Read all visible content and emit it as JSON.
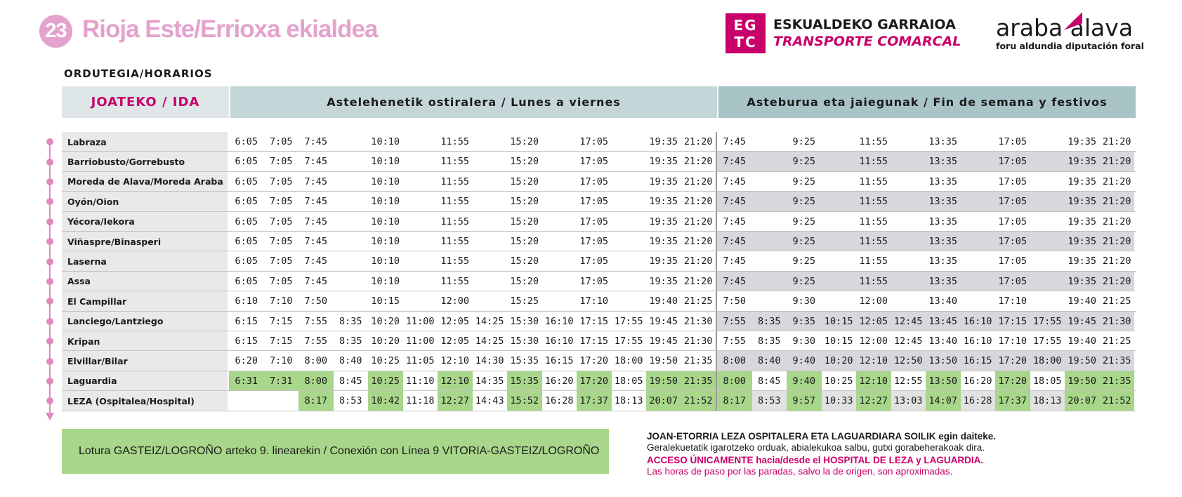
{
  "header": {
    "route_number": "23",
    "route_name": "Rioja Este/Errioxa ekialdea",
    "egtc_logo_lines": [
      "EG",
      "TC"
    ],
    "egtc_line1": "ESKUALDEKO GARRAIOA",
    "egtc_line2": "TRANSPORTE COMARCAL",
    "araba_main": "araba  álava",
    "araba_sub": "foru aldundia  diputación foral"
  },
  "section_label": "ORDUTEGIA/HORARIOS",
  "table": {
    "direction_label": "JOATEKO / IDA",
    "weekday_label": "Astelehenetik ostiralera / Lunes a viernes",
    "weekend_label": "Asteburua eta jaiegunak / Fin de semana y festivos",
    "rows": [
      {
        "stop": "Labraza",
        "week": [
          "6:05",
          "7:05",
          "7:45",
          "",
          "10:10",
          "",
          "11:55",
          "",
          "15:20",
          "",
          "17:05",
          "",
          "19:35",
          "21:20"
        ],
        "weekend": [
          "7:45",
          "",
          "9:25",
          "",
          "11:55",
          "",
          "13:35",
          "",
          "17:05",
          "",
          "19:35",
          "21:20"
        ]
      },
      {
        "stop": "Barriobusto/Gorrebusto",
        "week": [
          "6:05",
          "7:05",
          "7:45",
          "",
          "10:10",
          "",
          "11:55",
          "",
          "15:20",
          "",
          "17:05",
          "",
          "19:35",
          "21:20"
        ],
        "weekend": [
          "7:45",
          "",
          "9:25",
          "",
          "11:55",
          "",
          "13:35",
          "",
          "17:05",
          "",
          "19:35",
          "21:20"
        ]
      },
      {
        "stop": "Moreda de Alava/Moreda Araba",
        "week": [
          "6:05",
          "7:05",
          "7:45",
          "",
          "10:10",
          "",
          "11:55",
          "",
          "15:20",
          "",
          "17:05",
          "",
          "19:35",
          "21:20"
        ],
        "weekend": [
          "7:45",
          "",
          "9:25",
          "",
          "11:55",
          "",
          "13:35",
          "",
          "17:05",
          "",
          "19:35",
          "21:20"
        ]
      },
      {
        "stop": "Oyón/Oion",
        "week": [
          "6:05",
          "7:05",
          "7:45",
          "",
          "10:10",
          "",
          "11:55",
          "",
          "15:20",
          "",
          "17:05",
          "",
          "19:35",
          "21:20"
        ],
        "weekend": [
          "7:45",
          "",
          "9:25",
          "",
          "11:55",
          "",
          "13:35",
          "",
          "17:05",
          "",
          "19:35",
          "21:20"
        ]
      },
      {
        "stop": "Yécora/Iekora",
        "week": [
          "6:05",
          "7:05",
          "7:45",
          "",
          "10:10",
          "",
          "11:55",
          "",
          "15:20",
          "",
          "17:05",
          "",
          "19:35",
          "21:20"
        ],
        "weekend": [
          "7:45",
          "",
          "9:25",
          "",
          "11:55",
          "",
          "13:35",
          "",
          "17:05",
          "",
          "19:35",
          "21:20"
        ]
      },
      {
        "stop": "Viñaspre/Binasperi",
        "week": [
          "6:05",
          "7:05",
          "7:45",
          "",
          "10:10",
          "",
          "11:55",
          "",
          "15:20",
          "",
          "17:05",
          "",
          "19:35",
          "21:20"
        ],
        "weekend": [
          "7:45",
          "",
          "9:25",
          "",
          "11:55",
          "",
          "13:35",
          "",
          "17:05",
          "",
          "19:35",
          "21:20"
        ]
      },
      {
        "stop": "Laserna",
        "week": [
          "6:05",
          "7:05",
          "7:45",
          "",
          "10:10",
          "",
          "11:55",
          "",
          "15:20",
          "",
          "17:05",
          "",
          "19:35",
          "21:20"
        ],
        "weekend": [
          "7:45",
          "",
          "9:25",
          "",
          "11:55",
          "",
          "13:35",
          "",
          "17:05",
          "",
          "19:35",
          "21:20"
        ]
      },
      {
        "stop": "Assa",
        "week": [
          "6:05",
          "7:05",
          "7:45",
          "",
          "10:10",
          "",
          "11:55",
          "",
          "15:20",
          "",
          "17:05",
          "",
          "19:35",
          "21:20"
        ],
        "weekend": [
          "7:45",
          "",
          "9:25",
          "",
          "11:55",
          "",
          "13:35",
          "",
          "17:05",
          "",
          "19:35",
          "21:20"
        ]
      },
      {
        "stop": "El Campillar",
        "week": [
          "6:10",
          "7:10",
          "7:50",
          "",
          "10:15",
          "",
          "12:00",
          "",
          "15:25",
          "",
          "17:10",
          "",
          "19:40",
          "21:25"
        ],
        "weekend": [
          "7:50",
          "",
          "9:30",
          "",
          "12:00",
          "",
          "13:40",
          "",
          "17:10",
          "",
          "19:40",
          "21:25"
        ]
      },
      {
        "stop": "Lanciego/Lantziego",
        "week": [
          "6:15",
          "7:15",
          "7:55",
          "8:35",
          "10:20",
          "11:00",
          "12:05",
          "14:25",
          "15:30",
          "16:10",
          "17:15",
          "17:55",
          "19:45",
          "21:30"
        ],
        "weekend": [
          "7:55",
          "8:35",
          "9:35",
          "10:15",
          "12:05",
          "12:45",
          "13:45",
          "16:10",
          "17:15",
          "17:55",
          "19:45",
          "21:30"
        ]
      },
      {
        "stop": "Kripan",
        "week": [
          "6:15",
          "7:15",
          "7:55",
          "8:35",
          "10:20",
          "11:00",
          "12:05",
          "14:25",
          "15:30",
          "16:10",
          "17:15",
          "17:55",
          "19:45",
          "21:30"
        ],
        "weekend": [
          "7:55",
          "8:35",
          "9:30",
          "10:15",
          "12:00",
          "12:45",
          "13:40",
          "16:10",
          "17:10",
          "17:55",
          "19:40",
          "21:25"
        ]
      },
      {
        "stop": "Elvillar/Bilar",
        "week": [
          "6:20",
          "7:10",
          "8:00",
          "8:40",
          "10:25",
          "11:05",
          "12:10",
          "14:30",
          "15:35",
          "16:15",
          "17:20",
          "18:00",
          "19:50",
          "21:35"
        ],
        "weekend": [
          "8:00",
          "8:40",
          "9:40",
          "10:20",
          "12:10",
          "12:50",
          "13:50",
          "16:15",
          "17:20",
          "18:00",
          "19:50",
          "21:35"
        ]
      },
      {
        "stop": "Laguardia",
        "week": [
          "6:31",
          "7:31",
          "8:00",
          "8:45",
          "10:25",
          "11:10",
          "12:10",
          "14:35",
          "15:35",
          "16:20",
          "17:20",
          "18:05",
          "19:50",
          "21:35"
        ],
        "weekend": [
          "8:00",
          "8:45",
          "9:40",
          "10:25",
          "12:10",
          "12:55",
          "13:50",
          "16:20",
          "17:20",
          "18:05",
          "19:50",
          "21:35"
        ]
      },
      {
        "stop": "LEZA (Ospitalea/Hospital)",
        "week": [
          "",
          "",
          "8:17",
          "8:53",
          "10:42",
          "11:18",
          "12:27",
          "14:43",
          "15:52",
          "16:28",
          "17:37",
          "18:13",
          "20:07",
          "21:52"
        ],
        "weekend": [
          "8:17",
          "8:53",
          "9:57",
          "10:33",
          "12:27",
          "13:03",
          "14:07",
          "16:28",
          "17:37",
          "18:13",
          "20:07",
          "21:52"
        ]
      }
    ]
  },
  "footer": {
    "connection": "Lotura GASTEIZ/LOGROÑO arteko 9. linearekin / Conexión con Línea 9 VITORIA-GASTEIZ/LOGROÑO",
    "note1": "JOAN-ETORRIA LEZA OSPITALERA ETA LAGUARDIARA SOILIK egin daiteke.",
    "note2": "Geralekuetatik igarotzeko orduak, abialekukoa salbu, gutxi gorabeherakoak dira.",
    "note3": "ACCESO ÚNICAMENTE hacia/desde el HOSPITAL DE LEZA y LAGUARDIA.",
    "note4": "Las horas de paso por las paradas, salvo la de origen, son aproximadas."
  },
  "colors": {
    "accent_pink": "#c8006a",
    "light_pink": "#e3a3cc",
    "highlight_green": "#a8d68a",
    "weekday_header": "#c5d6d8",
    "weekend_header": "#a9c4c7"
  }
}
